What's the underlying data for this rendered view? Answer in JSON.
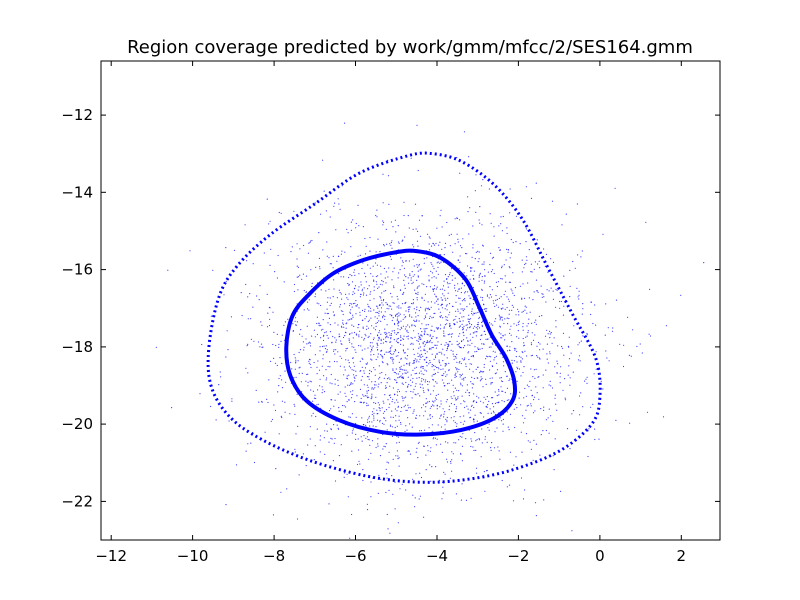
{
  "chart_data": {
    "type": "scatter",
    "title": "Region coverage predicted by work/gmm/mfcc/2/SES164.gmm",
    "xlabel": "",
    "ylabel": "",
    "xlim": [
      -12.25,
      2.95
    ],
    "ylim": [
      -23.0,
      -10.6
    ],
    "xticks": [
      -12,
      -10,
      -8,
      -6,
      -4,
      -2,
      0,
      2
    ],
    "yticks": [
      -22,
      -20,
      -18,
      -16,
      -14,
      -12
    ],
    "xtick_labels": [
      "−12",
      "−10",
      "−8",
      "−6",
      "−4",
      "−2",
      "0",
      "2"
    ],
    "ytick_labels": [
      "−22",
      "−20",
      "−18",
      "−16",
      "−14",
      "−12"
    ],
    "grid": false,
    "point_color": "#0000ff",
    "scatter": {
      "count": 3000,
      "center": [
        -4.4,
        -18.0
      ],
      "std": [
        1.95,
        1.7
      ],
      "marker": "point"
    },
    "contours": [
      {
        "style": "dotted",
        "color": "#0000ff",
        "points": [
          [
            -9.6,
            -18.0
          ],
          [
            -9.35,
            -16.7
          ],
          [
            -8.9,
            -15.9
          ],
          [
            -8.1,
            -15.1
          ],
          [
            -7.0,
            -14.3
          ],
          [
            -5.9,
            -13.5
          ],
          [
            -4.7,
            -13.05
          ],
          [
            -4.1,
            -13.0
          ],
          [
            -3.4,
            -13.2
          ],
          [
            -2.6,
            -13.8
          ],
          [
            -1.9,
            -14.7
          ],
          [
            -1.3,
            -15.9
          ],
          [
            -0.7,
            -17.1
          ],
          [
            -0.1,
            -18.3
          ],
          [
            0.0,
            -19.3
          ],
          [
            -0.2,
            -20.0
          ],
          [
            -1.0,
            -20.7
          ],
          [
            -2.2,
            -21.2
          ],
          [
            -3.4,
            -21.45
          ],
          [
            -4.5,
            -21.5
          ],
          [
            -5.7,
            -21.35
          ],
          [
            -7.1,
            -20.95
          ],
          [
            -8.3,
            -20.4
          ],
          [
            -9.1,
            -19.8
          ],
          [
            -9.55,
            -19.0
          ]
        ]
      },
      {
        "style": "solid",
        "color": "#0000ff",
        "points": [
          [
            -7.7,
            -18.0
          ],
          [
            -7.55,
            -17.2
          ],
          [
            -7.15,
            -16.65
          ],
          [
            -6.55,
            -16.1
          ],
          [
            -5.8,
            -15.75
          ],
          [
            -5.0,
            -15.55
          ],
          [
            -4.5,
            -15.52
          ],
          [
            -3.9,
            -15.7
          ],
          [
            -3.3,
            -16.25
          ],
          [
            -2.95,
            -17.0
          ],
          [
            -2.65,
            -17.7
          ],
          [
            -2.3,
            -18.3
          ],
          [
            -2.1,
            -18.9
          ],
          [
            -2.15,
            -19.4
          ],
          [
            -2.6,
            -19.85
          ],
          [
            -3.4,
            -20.15
          ],
          [
            -4.4,
            -20.27
          ],
          [
            -5.4,
            -20.2
          ],
          [
            -6.4,
            -19.9
          ],
          [
            -7.2,
            -19.4
          ],
          [
            -7.6,
            -18.75
          ]
        ]
      }
    ]
  }
}
